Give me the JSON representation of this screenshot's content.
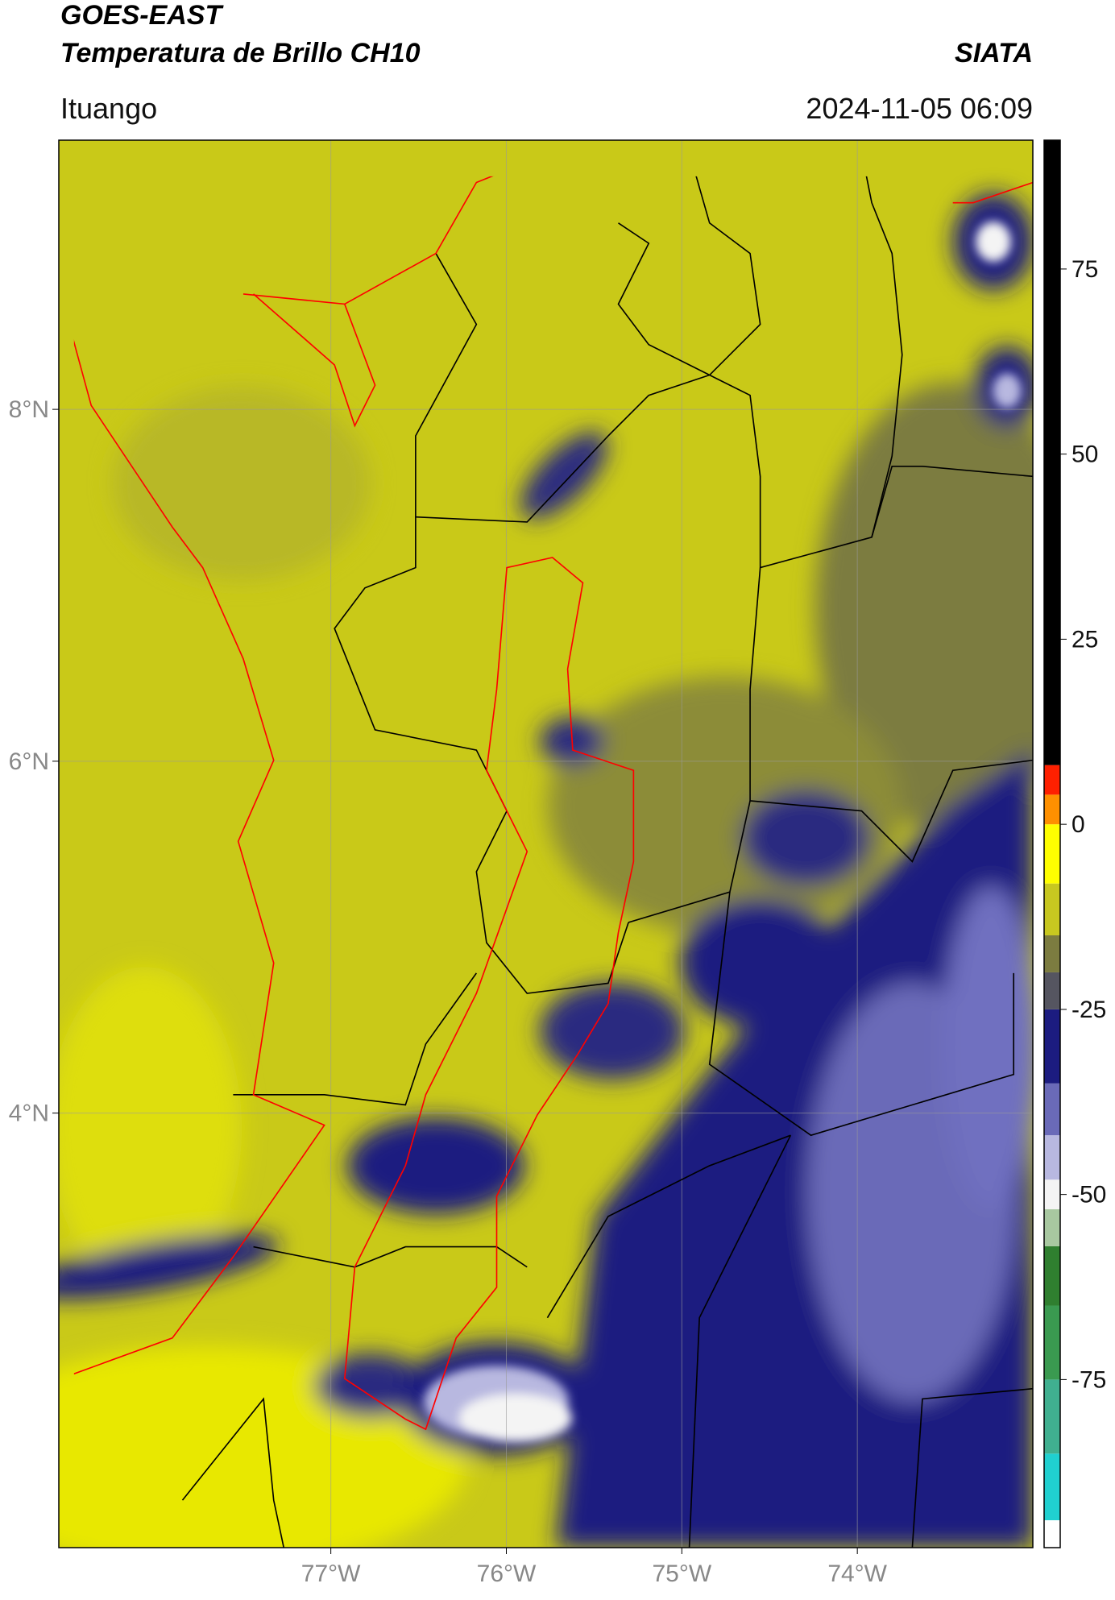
{
  "header": {
    "title": "GOES-EAST",
    "subtitle": "Temperatura de Brillo CH10",
    "source": "SIATA",
    "location": "Ituango",
    "timestamp": "2024-11-05 06:09"
  },
  "map": {
    "xlim": [
      -78.55,
      -73.0
    ],
    "ylim": [
      1.53,
      9.53
    ],
    "xticks": [
      {
        "value": -77,
        "label": "77°W"
      },
      {
        "value": -76,
        "label": "76°W"
      },
      {
        "value": -75,
        "label": "75°W"
      },
      {
        "value": -74,
        "label": "74°W"
      }
    ],
    "yticks": [
      {
        "value": 4,
        "label": "4°N"
      },
      {
        "value": 6,
        "label": "6°N"
      },
      {
        "value": 8,
        "label": "8°N"
      }
    ],
    "grid": true
  },
  "colorbar": {
    "lim": [
      -97.7,
      92.4
    ],
    "ticks": [
      -75,
      -50,
      -25,
      0,
      25,
      50,
      75
    ],
    "colorscale": [
      {
        "value": -97.7,
        "color": "#ffffff"
      },
      {
        "value": -94,
        "color": "#20d0d0"
      },
      {
        "value": -85,
        "color": "#40b090"
      },
      {
        "value": -75,
        "color": "#3a9a50"
      },
      {
        "value": -65,
        "color": "#2f7f2f"
      },
      {
        "value": -57,
        "color": "#a8c8a0"
      },
      {
        "value": -52,
        "color": "#f4f4f4"
      },
      {
        "value": -48,
        "color": "#b8b8e0"
      },
      {
        "value": -42,
        "color": "#6a6ab8"
      },
      {
        "value": -35,
        "color": "#1c1c80"
      },
      {
        "value": -25,
        "color": "#555560"
      },
      {
        "value": -20,
        "color": "#7c7c40"
      },
      {
        "value": -15,
        "color": "#c8c820"
      },
      {
        "value": -8,
        "color": "#ffff00"
      },
      {
        "value": 0,
        "color": "#ff9000"
      },
      {
        "value": 4,
        "color": "#ff2000"
      },
      {
        "value": 8,
        "color": "#000000"
      }
    ]
  }
}
